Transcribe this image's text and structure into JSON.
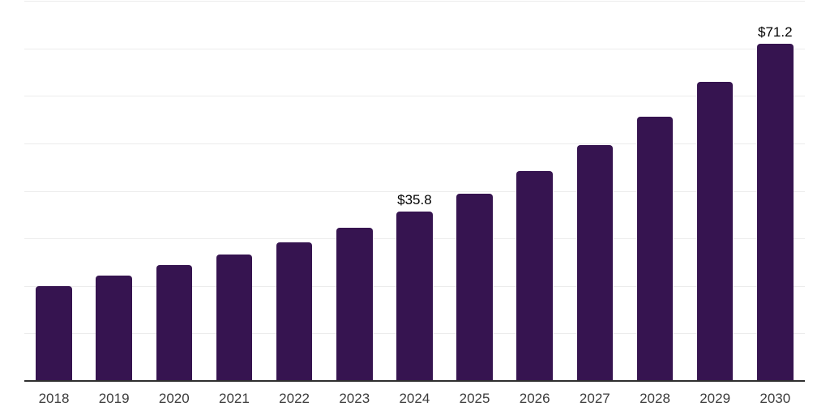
{
  "chart_data": {
    "type": "bar",
    "title": "",
    "xlabel": "",
    "ylabel": "",
    "categories": [
      "2018",
      "2019",
      "2020",
      "2021",
      "2022",
      "2023",
      "2024",
      "2025",
      "2026",
      "2027",
      "2028",
      "2029",
      "2030"
    ],
    "values": [
      20.2,
      22.4,
      24.5,
      26.8,
      29.4,
      32.4,
      35.8,
      39.6,
      44.3,
      49.8,
      55.8,
      63.2,
      71.2
    ],
    "value_labels": {
      "2024": "$35.8",
      "2030": "$71.2"
    },
    "ylim": [
      0,
      80
    ],
    "gridline_step": 10,
    "grid": "horizontal",
    "y_axis_labels_shown": false,
    "legend": false,
    "colors": {
      "bar": "#361450",
      "gridline": "#ececec",
      "axis_line": "#2f2f2f",
      "tick_label": "#3c3c3c",
      "value_label": "#000000",
      "background": "#ffffff"
    }
  }
}
